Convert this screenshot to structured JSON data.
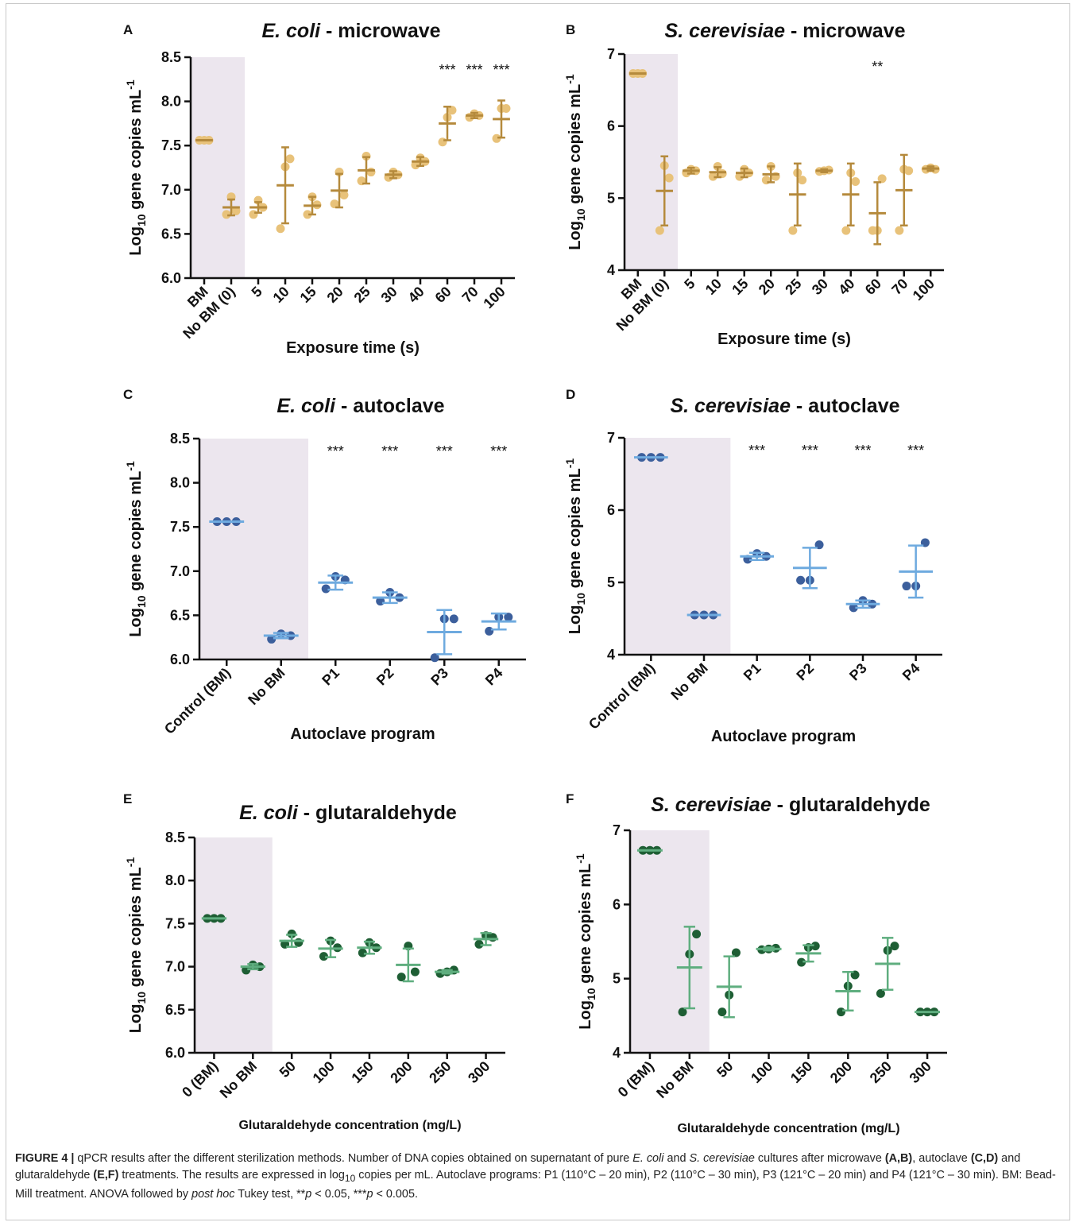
{
  "chart_data": [
    {
      "panel": "A",
      "type": "scatter",
      "title_italic": "E. coli",
      "title_rest": " - microwave",
      "ylabel": "Log10 gene copies mL-1",
      "xlabel": "Exposure time (s)",
      "categories": [
        "BM",
        "No BM (0)",
        "5",
        "10",
        "15",
        "20",
        "25",
        "30",
        "40",
        "60",
        "70",
        "100"
      ],
      "ylim": [
        6.0,
        8.5
      ],
      "yticks": [
        "6.0",
        "6.5",
        "7.0",
        "7.5",
        "8.0",
        "8.5"
      ],
      "shaded_categories": [
        "BM",
        "No BM (0)"
      ],
      "point_color": "#e8c27a",
      "line_color": "#b58a3c",
      "means": [
        7.56,
        6.8,
        6.8,
        7.05,
        6.82,
        6.99,
        7.22,
        7.17,
        7.32,
        7.75,
        7.84,
        7.8
      ],
      "sd": [
        0.0,
        0.09,
        0.06,
        0.43,
        0.1,
        0.19,
        0.15,
        0.04,
        0.05,
        0.19,
        0.03,
        0.21
      ],
      "points": [
        [
          7.56,
          7.56,
          7.56
        ],
        [
          6.72,
          6.92,
          6.76
        ],
        [
          6.72,
          6.88,
          6.8
        ],
        [
          6.56,
          7.26,
          7.35
        ],
        [
          6.72,
          6.92,
          6.83
        ],
        [
          6.84,
          7.2,
          6.94
        ],
        [
          7.1,
          7.38,
          7.2
        ],
        [
          7.14,
          7.2,
          7.17
        ],
        [
          7.28,
          7.36,
          7.32
        ],
        [
          7.54,
          7.82,
          7.9
        ],
        [
          7.82,
          7.86,
          7.84
        ],
        [
          7.58,
          7.92,
          7.92
        ]
      ],
      "significance": [
        "",
        "",
        "",
        "",
        "",
        "",
        "",
        "",
        "",
        "***",
        "***",
        "***"
      ]
    },
    {
      "panel": "B",
      "type": "scatter",
      "title_italic": "S. cerevisiae",
      "title_rest": " - microwave",
      "ylabel": "Log10 gene copies mL-1",
      "xlabel": "Exposure time (s)",
      "categories": [
        "BM",
        "No BM (0)",
        "5",
        "10",
        "15",
        "20",
        "25",
        "30",
        "40",
        "60",
        "70",
        "100"
      ],
      "ylim": [
        4,
        7
      ],
      "yticks": [
        "4",
        "5",
        "6",
        "7"
      ],
      "shaded_categories": [
        "BM",
        "No BM (0)"
      ],
      "point_color": "#e8c27a",
      "line_color": "#b58a3c",
      "means": [
        6.73,
        5.1,
        5.38,
        5.36,
        5.35,
        5.33,
        5.05,
        5.38,
        5.05,
        4.79,
        5.11,
        5.41
      ],
      "sd": [
        0.0,
        0.48,
        0.04,
        0.07,
        0.06,
        0.11,
        0.43,
        0.02,
        0.43,
        0.43,
        0.49,
        0.03
      ],
      "points": [
        [
          6.73,
          6.73,
          6.73
        ],
        [
          4.55,
          5.45,
          5.28
        ],
        [
          5.35,
          5.4,
          5.38
        ],
        [
          5.3,
          5.44,
          5.34
        ],
        [
          5.3,
          5.4,
          5.35
        ],
        [
          5.25,
          5.44,
          5.3
        ],
        [
          4.55,
          5.35,
          5.25
        ],
        [
          5.37,
          5.38,
          5.39
        ],
        [
          4.55,
          5.35,
          5.23
        ],
        [
          4.55,
          4.55,
          5.27
        ],
        [
          4.55,
          5.4,
          5.38
        ],
        [
          5.4,
          5.42,
          5.4
        ]
      ],
      "significance": [
        "",
        "",
        "",
        "",
        "",
        "",
        "",
        "",
        "",
        "**",
        "",
        ""
      ]
    },
    {
      "panel": "C",
      "type": "scatter",
      "title_italic": "E. coli",
      "title_rest": " - autoclave",
      "ylabel": "Log10 gene copies mL-1",
      "xlabel": "Autoclave program",
      "categories": [
        "Control (BM)",
        "No BM",
        "P1",
        "P2",
        "P3",
        "P4"
      ],
      "ylim": [
        6.0,
        8.5
      ],
      "yticks": [
        "6.0",
        "6.5",
        "7.0",
        "7.5",
        "8.0",
        "8.5"
      ],
      "shaded_categories": [
        "Control (BM)",
        "No BM"
      ],
      "point_color": "#3c5f9c",
      "line_color": "#6eaadf",
      "means": [
        7.56,
        6.27,
        6.87,
        6.7,
        6.31,
        6.43
      ],
      "sd": [
        0.0,
        0.03,
        0.08,
        0.06,
        0.25,
        0.09
      ],
      "points": [
        [
          7.56,
          7.56,
          7.56
        ],
        [
          6.23,
          6.29,
          6.27
        ],
        [
          6.8,
          6.94,
          6.9
        ],
        [
          6.66,
          6.76,
          6.7
        ],
        [
          6.02,
          6.46,
          6.46
        ],
        [
          6.32,
          6.48,
          6.48
        ]
      ],
      "significance": [
        "",
        "",
        "***",
        "***",
        "***",
        "***"
      ]
    },
    {
      "panel": "D",
      "type": "scatter",
      "title_italic": "S. cerevisiae",
      "title_rest": " - autoclave",
      "ylabel": "Log10 gene copies mL-1",
      "xlabel": "Autoclave program",
      "categories": [
        "Control (BM)",
        "No BM",
        "P1",
        "P2",
        "P3",
        "P4"
      ],
      "ylim": [
        4,
        7
      ],
      "yticks": [
        "4",
        "5",
        "6",
        "7"
      ],
      "shaded_categories": [
        "Control (BM)",
        "No BM"
      ],
      "point_color": "#3c5f9c",
      "line_color": "#6eaadf",
      "means": [
        6.73,
        4.55,
        5.36,
        5.2,
        4.7,
        5.15
      ],
      "sd": [
        0.0,
        0.0,
        0.05,
        0.28,
        0.05,
        0.36
      ],
      "points": [
        [
          6.73,
          6.73,
          6.73
        ],
        [
          4.55,
          4.55,
          4.55
        ],
        [
          5.32,
          5.4,
          5.36
        ],
        [
          5.03,
          5.03,
          5.52
        ],
        [
          4.65,
          4.75,
          4.7
        ],
        [
          4.95,
          4.95,
          5.55
        ]
      ],
      "significance": [
        "",
        "",
        "***",
        "***",
        "***",
        "***"
      ]
    },
    {
      "panel": "E",
      "type": "scatter",
      "title_italic": "E. coli",
      "title_rest": " - glutaraldehyde",
      "ylabel": "Log10 gene copies mL-1",
      "xlabel": "Glutaraldehyde concentration (mg/L)",
      "categories": [
        "0 (BM)",
        "No BM",
        "50",
        "100",
        "150",
        "200",
        "250",
        "300"
      ],
      "ylim": [
        6.0,
        8.5
      ],
      "yticks": [
        "6.0",
        "6.5",
        "7.0",
        "7.5",
        "8.0",
        "8.5"
      ],
      "shaded_categories": [
        "0 (BM)",
        "No BM"
      ],
      "point_color": "#1e5e34",
      "line_color": "#5fae7f",
      "means": [
        7.56,
        7.0,
        7.3,
        7.21,
        7.22,
        7.02,
        6.94,
        7.32
      ],
      "sd": [
        0.0,
        0.03,
        0.07,
        0.1,
        0.07,
        0.19,
        0.02,
        0.07
      ],
      "points": [
        [
          7.56,
          7.56,
          7.56
        ],
        [
          6.96,
          7.02,
          7.0
        ],
        [
          7.26,
          7.38,
          7.28
        ],
        [
          7.12,
          7.3,
          7.22
        ],
        [
          7.16,
          7.28,
          7.22
        ],
        [
          6.88,
          7.24,
          6.94
        ],
        [
          6.92,
          6.94,
          6.96
        ],
        [
          7.26,
          7.36,
          7.34
        ]
      ],
      "significance": [
        "",
        "",
        "",
        "",
        "",
        "",
        "",
        ""
      ]
    },
    {
      "panel": "F",
      "type": "scatter",
      "title_italic": "S. cerevisiae",
      "title_rest": " - glutaraldehyde",
      "ylabel": "Log10 gene copies mL-1",
      "xlabel": "Glutaraldehyde concentration (mg/L)",
      "categories": [
        "0 (BM)",
        "No BM",
        "50",
        "100",
        "150",
        "200",
        "250",
        "300"
      ],
      "ylim": [
        4,
        7
      ],
      "yticks": [
        "4",
        "5",
        "6",
        "7"
      ],
      "shaded_categories": [
        "0 (BM)",
        "No BM"
      ],
      "point_color": "#1e5e34",
      "line_color": "#5fae7f",
      "means": [
        6.73,
        5.15,
        4.89,
        5.4,
        5.34,
        4.83,
        5.2,
        4.55
      ],
      "sd": [
        0.0,
        0.55,
        0.41,
        0.02,
        0.11,
        0.26,
        0.35,
        0.0
      ],
      "points": [
        [
          6.73,
          6.73,
          6.73
        ],
        [
          4.55,
          5.33,
          5.6
        ],
        [
          4.55,
          4.78,
          5.35
        ],
        [
          5.39,
          5.4,
          5.41
        ],
        [
          5.22,
          5.42,
          5.44
        ],
        [
          4.55,
          4.9,
          5.05
        ],
        [
          4.8,
          5.38,
          5.44
        ],
        [
          4.55,
          4.55,
          4.55
        ]
      ],
      "significance": [
        "",
        "",
        "",
        "",
        "",
        "",
        "",
        ""
      ]
    }
  ],
  "caption": {
    "label": "FIGURE 4 |",
    "text_1": " qPCR results after the different sterilization methods. Number of DNA copies obtained on supernatant of pure ",
    "ecoli": "E. coli",
    "text_2": " and ",
    "scer": "S. cerevisiae",
    "text_3": " cultures after microwave ",
    "ab": "(A,B)",
    "text_4": ", autoclave ",
    "cd": "(C,D)",
    "text_5": " and glutaraldehyde ",
    "ef": "(E,F)",
    "text_6": " treatments. The results are expressed in log",
    "sub10": "10",
    "text_7": " copies per mL. Autoclave programs: P1 (110°C – 20 min), P2 (110°C – 30 min), P3 (121°C – 20 min) and P4 (121°C – 30 min). BM: Bead-Mill treatment. ANOVA followed by ",
    "posthoc": "post hoc",
    "text_8": " Tukey test, **",
    "p1": "p",
    "text_9": " < 0.05, ***",
    "p2": "p",
    "text_10": " < 0.005."
  }
}
